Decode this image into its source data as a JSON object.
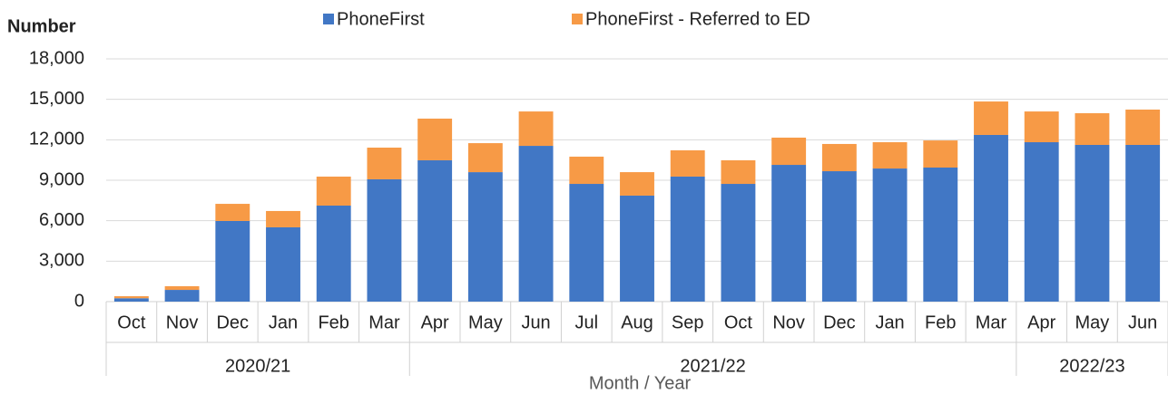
{
  "chart_data": {
    "type": "stacked_bar",
    "y_axis_label": "Number",
    "x_axis_label": "Month / Year",
    "categories": [
      "Oct",
      "Nov",
      "Dec",
      "Jan",
      "Feb",
      "Mar",
      "Apr",
      "May",
      "Jun",
      "Jul",
      "Aug",
      "Sep",
      "Oct",
      "Nov",
      "Dec",
      "Jan",
      "Feb",
      "Mar",
      "Apr",
      "May",
      "Jun"
    ],
    "year_labels": [
      "2020/21",
      null,
      null,
      null,
      null,
      null,
      "2021/22",
      null,
      null,
      null,
      null,
      null,
      null,
      null,
      null,
      null,
      null,
      null,
      "2022/23",
      null,
      null
    ],
    "series": [
      {
        "name": "PhoneFirst",
        "color": "#4177c5",
        "values": [
          250,
          870,
          5980,
          5510,
          7120,
          9070,
          10480,
          9600,
          11550,
          8730,
          7860,
          9270,
          8730,
          10140,
          9670,
          9870,
          9940,
          12360,
          11820,
          11620,
          11620
        ]
      },
      {
        "name": "PhoneFirst - Referred to ED",
        "color": "#f79a46",
        "values": [
          150,
          270,
          1270,
          1210,
          2150,
          2350,
          3090,
          2150,
          2550,
          2020,
          1740,
          1950,
          1750,
          2020,
          2020,
          1950,
          2010,
          2480,
          2280,
          2350,
          2620
        ]
      }
    ],
    "ylim": [
      0,
      18000
    ],
    "yticks": [
      0,
      {
        "value": 3000,
        "label": "3,000"
      },
      {
        "value": 6000,
        "label": "6,000"
      },
      {
        "value": 9000,
        "label": "9,000"
      },
      {
        "value": 12000,
        "label": "12,000"
      },
      {
        "value": 15000,
        "label": "15,000"
      },
      {
        "value": 18000,
        "label": "18,000"
      }
    ],
    "grid": true,
    "legend": "top"
  }
}
